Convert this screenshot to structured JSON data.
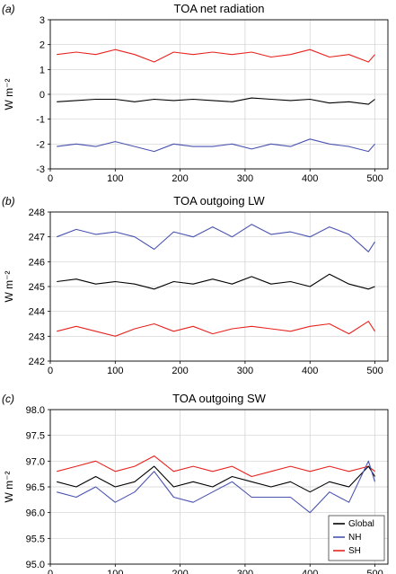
{
  "colors": {
    "global": "#000000",
    "nh": "#4a52b0",
    "sh": "#e8231f",
    "grid": "#d0d0d0",
    "axis": "#000000"
  },
  "legend": {
    "position": "bottom-right",
    "panel": 2
  },
  "chart_data": [
    {
      "type": "line",
      "panel_label": "(a)",
      "title": "TOA net radiation",
      "xlabel": "",
      "ylabel": "W m⁻²",
      "xlim": [
        0,
        520
      ],
      "ylim": [
        -3,
        3
      ],
      "xticks": [
        0,
        100,
        200,
        300,
        400,
        500
      ],
      "yticks": [
        -3,
        -2,
        -1,
        0,
        1,
        2,
        3
      ],
      "grid": true,
      "x": [
        10,
        40,
        70,
        100,
        130,
        160,
        190,
        220,
        250,
        280,
        310,
        340,
        370,
        400,
        430,
        460,
        490,
        500
      ],
      "series": [
        {
          "key": "sh",
          "values": [
            1.6,
            1.7,
            1.6,
            1.8,
            1.6,
            1.3,
            1.7,
            1.6,
            1.7,
            1.6,
            1.7,
            1.5,
            1.6,
            1.8,
            1.5,
            1.6,
            1.3,
            1.6
          ]
        },
        {
          "key": "global",
          "values": [
            -0.3,
            -0.25,
            -0.2,
            -0.2,
            -0.3,
            -0.2,
            -0.25,
            -0.2,
            -0.25,
            -0.3,
            -0.15,
            -0.2,
            -0.25,
            -0.2,
            -0.35,
            -0.3,
            -0.4,
            -0.2
          ]
        },
        {
          "key": "nh",
          "values": [
            -2.1,
            -2.0,
            -2.1,
            -1.9,
            -2.1,
            -2.3,
            -2.0,
            -2.1,
            -2.1,
            -2.0,
            -2.2,
            -2.0,
            -2.1,
            -1.8,
            -2.0,
            -2.1,
            -2.3,
            -2.0
          ]
        }
      ]
    },
    {
      "type": "line",
      "panel_label": "(b)",
      "title": "TOA outgoing LW",
      "xlabel": "",
      "ylabel": "W m⁻²",
      "xlim": [
        0,
        520
      ],
      "ylim": [
        242,
        248
      ],
      "xticks": [
        0,
        100,
        200,
        300,
        400,
        500
      ],
      "yticks": [
        242,
        243,
        244,
        245,
        246,
        247,
        248
      ],
      "grid": true,
      "x": [
        10,
        40,
        70,
        100,
        130,
        160,
        190,
        220,
        250,
        280,
        310,
        340,
        370,
        400,
        430,
        460,
        490,
        500
      ],
      "series": [
        {
          "key": "nh",
          "values": [
            247.0,
            247.3,
            247.1,
            247.2,
            247.0,
            246.5,
            247.2,
            247.0,
            247.4,
            247.0,
            247.5,
            247.1,
            247.2,
            247.0,
            247.4,
            247.1,
            246.4,
            246.8
          ]
        },
        {
          "key": "global",
          "values": [
            245.2,
            245.3,
            245.1,
            245.2,
            245.1,
            244.9,
            245.2,
            245.1,
            245.3,
            245.1,
            245.4,
            245.1,
            245.2,
            245.0,
            245.5,
            245.1,
            244.9,
            245.0
          ]
        },
        {
          "key": "sh",
          "values": [
            243.2,
            243.4,
            243.2,
            243.0,
            243.3,
            243.5,
            243.2,
            243.4,
            243.1,
            243.3,
            243.4,
            243.3,
            243.2,
            243.4,
            243.5,
            243.1,
            243.6,
            243.2
          ]
        }
      ]
    },
    {
      "type": "line",
      "panel_label": "(c)",
      "title": "TOA outgoing SW",
      "xlabel": "",
      "ylabel": "W m⁻²",
      "xlim": [
        0,
        520
      ],
      "ylim": [
        95.0,
        98.0
      ],
      "xticks": [
        0,
        100,
        200,
        300,
        400,
        500
      ],
      "yticks": [
        "95.0",
        "95.5",
        "96.0",
        "96.5",
        "97.0",
        "97.5",
        "98.0"
      ],
      "grid": true,
      "x": [
        10,
        40,
        70,
        100,
        130,
        160,
        190,
        220,
        250,
        280,
        310,
        340,
        370,
        400,
        430,
        460,
        490,
        500
      ],
      "series": [
        {
          "key": "sh",
          "values": [
            96.8,
            96.9,
            97.0,
            96.8,
            96.9,
            97.1,
            96.8,
            96.9,
            96.8,
            96.9,
            96.7,
            96.8,
            96.9,
            96.8,
            96.9,
            96.8,
            96.9,
            96.8
          ]
        },
        {
          "key": "global",
          "values": [
            96.6,
            96.5,
            96.7,
            96.5,
            96.6,
            96.9,
            96.5,
            96.6,
            96.5,
            96.7,
            96.6,
            96.5,
            96.6,
            96.4,
            96.6,
            96.5,
            96.9,
            96.7
          ]
        },
        {
          "key": "nh",
          "values": [
            96.4,
            96.3,
            96.5,
            96.2,
            96.4,
            96.8,
            96.3,
            96.2,
            96.4,
            96.6,
            96.3,
            96.3,
            96.3,
            96.0,
            96.4,
            96.2,
            97.0,
            96.6
          ]
        }
      ],
      "legend_entries": [
        {
          "key": "global",
          "label": "Global"
        },
        {
          "key": "nh",
          "label": "NH"
        },
        {
          "key": "sh",
          "label": "SH"
        }
      ]
    }
  ]
}
